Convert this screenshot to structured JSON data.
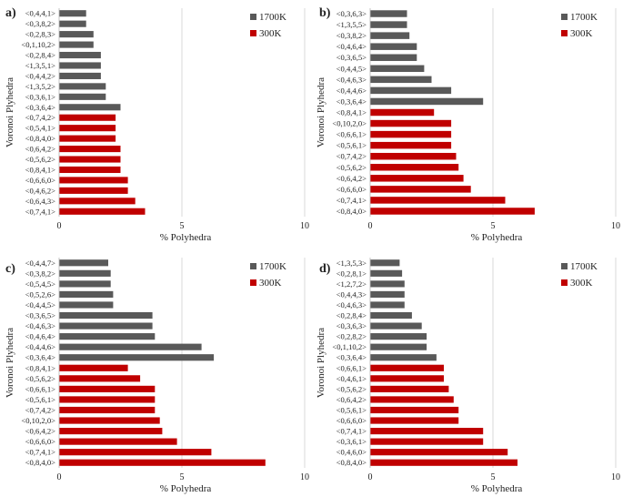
{
  "figure": {
    "legend_labels": [
      "1700K",
      "300K"
    ],
    "colors": {
      "1700K": "#595959",
      "300K": "#c00000",
      "axis": "#bfbfbf",
      "text": "#222222"
    }
  },
  "chart_data": [
    {
      "type": "bar",
      "orientation": "horizontal",
      "panel_label": "a)",
      "ylabel": "Voronoi Plyhedra",
      "xlabel": "% Polyhedra",
      "xlim": [
        0,
        10
      ],
      "xticks": [
        "0",
        "5",
        "10"
      ],
      "legend_position": "top-right",
      "series": [
        {
          "name": "1700K",
          "categories": [
            "<0,4,4,1>",
            "<0,3,8,2>",
            "<0,2,8,3>",
            "<0,1,10,2>",
            "<0,2,8,4>",
            "<1,3,5,1>",
            "<0,4,4,2>",
            "<1,3,5,2>",
            "<0,3,6,1>",
            "<0,3,6,4>"
          ],
          "values": [
            1.1,
            1.1,
            1.4,
            1.4,
            1.7,
            1.7,
            1.7,
            1.9,
            1.9,
            2.5
          ]
        },
        {
          "name": "300K",
          "categories": [
            "<0,7,4,2>",
            "<0,5,4,1>",
            "<0,8,4,0>",
            "<0,6,4,2>",
            "<0,5,6,2>",
            "<0,8,4,1>",
            "<0,6,6,0>",
            "<0,4,6,2>",
            "<0,6,4,3>",
            "<0,7,4,1>"
          ],
          "values": [
            2.3,
            2.3,
            2.3,
            2.5,
            2.5,
            2.5,
            2.8,
            2.8,
            3.1,
            3.5
          ]
        }
      ]
    },
    {
      "type": "bar",
      "orientation": "horizontal",
      "panel_label": "b)",
      "ylabel": "Voronoi Plyhedra",
      "xlabel": "% Polyhedra",
      "xlim": [
        0,
        10
      ],
      "xticks": [
        "0",
        "5",
        "10"
      ],
      "legend_position": "top-right",
      "series": [
        {
          "name": "1700K",
          "categories": [
            "<0,3,6,3>",
            "<1,3,5,5>",
            "<0,3,8,2>",
            "<0,4,6,4>",
            "<0,3,6,5>",
            "<0,4,4,5>",
            "<0,4,6,3>",
            "<0,4,4,6>",
            "<0,3,6,4>"
          ],
          "values": [
            1.5,
            1.5,
            1.6,
            1.9,
            1.9,
            2.2,
            2.5,
            3.3,
            4.6
          ]
        },
        {
          "name": "300K",
          "categories": [
            "<0,8,4,1>",
            "<0,10,2,0>",
            "<0,6,6,1>",
            "<0,5,6,1>",
            "<0,7,4,2>",
            "<0,5,6,2>",
            "<0,6,4,2>",
            "<0,6,6,0>",
            "<0,7,4,1>",
            "<0,8,4,0>"
          ],
          "values": [
            2.6,
            3.3,
            3.3,
            3.3,
            3.5,
            3.6,
            3.8,
            4.1,
            5.5,
            6.7
          ]
        }
      ]
    },
    {
      "type": "bar",
      "orientation": "horizontal",
      "panel_label": "c)",
      "ylabel": "Voronoi Plyhedra",
      "xlabel": "% Polyhedra",
      "xlim": [
        0,
        10
      ],
      "xticks": [
        "0",
        "5",
        "10"
      ],
      "legend_position": "top-right",
      "series": [
        {
          "name": "1700K",
          "categories": [
            "<0,4,4,7>",
            "<0,3,8,2>",
            "<0,5,4,5>",
            "<0,5,2,6>",
            "<0,4,4,5>",
            "<0,3,6,5>",
            "<0,4,6,3>",
            "<0,4,6,4>",
            "<0,4,4,6>",
            "<0,3,6,4>"
          ],
          "values": [
            2.0,
            2.1,
            2.1,
            2.2,
            2.2,
            3.8,
            3.8,
            3.9,
            5.8,
            6.3
          ]
        },
        {
          "name": "300K",
          "categories": [
            "<0,8,4,1>",
            "<0,5,6,2>",
            "<0,6,6,1>",
            "<0,5,6,1>",
            "<0,7,4,2>",
            "<0,10,2,0>",
            "<0,6,4,2>",
            "<0,6,6,0>",
            "<0,7,4,1>",
            "<0,8,4,0>"
          ],
          "values": [
            2.8,
            3.3,
            3.9,
            3.9,
            3.9,
            4.1,
            4.2,
            4.8,
            6.2,
            8.4
          ]
        }
      ]
    },
    {
      "type": "bar",
      "orientation": "horizontal",
      "panel_label": "d)",
      "ylabel": "Voronoi Plyhedra",
      "xlabel": "% Polyhedra",
      "xlim": [
        0,
        10
      ],
      "xticks": [
        "0",
        "5",
        "10"
      ],
      "legend_position": "top-right",
      "series": [
        {
          "name": "1700K",
          "categories": [
            "<1,3,5,3>",
            "<0,2,8,1>",
            "<1,2,7,2>",
            "<0,4,4,3>",
            "<0,4,6,3>",
            "<0,2,8,4>",
            "<0,3,6,3>",
            "<0,2,8,2>",
            "<0,1,10,2>",
            "<0,3,6,4>"
          ],
          "values": [
            1.2,
            1.3,
            1.4,
            1.4,
            1.4,
            1.7,
            2.1,
            2.3,
            2.3,
            2.7
          ]
        },
        {
          "name": "300K",
          "categories": [
            "<0,6,6,1>",
            "<0,4,6,1>",
            "<0,5,6,2>",
            "<0,6,4,2>",
            "<0,5,6,1>",
            "<0,6,6,0>",
            "<0,7,4,1>",
            "<0,3,6,1>",
            "<0,4,6,0>",
            "<0,8,4,0>"
          ],
          "values": [
            3.0,
            3.0,
            3.2,
            3.4,
            3.6,
            3.6,
            4.6,
            4.6,
            5.6,
            6.0
          ]
        }
      ]
    }
  ]
}
